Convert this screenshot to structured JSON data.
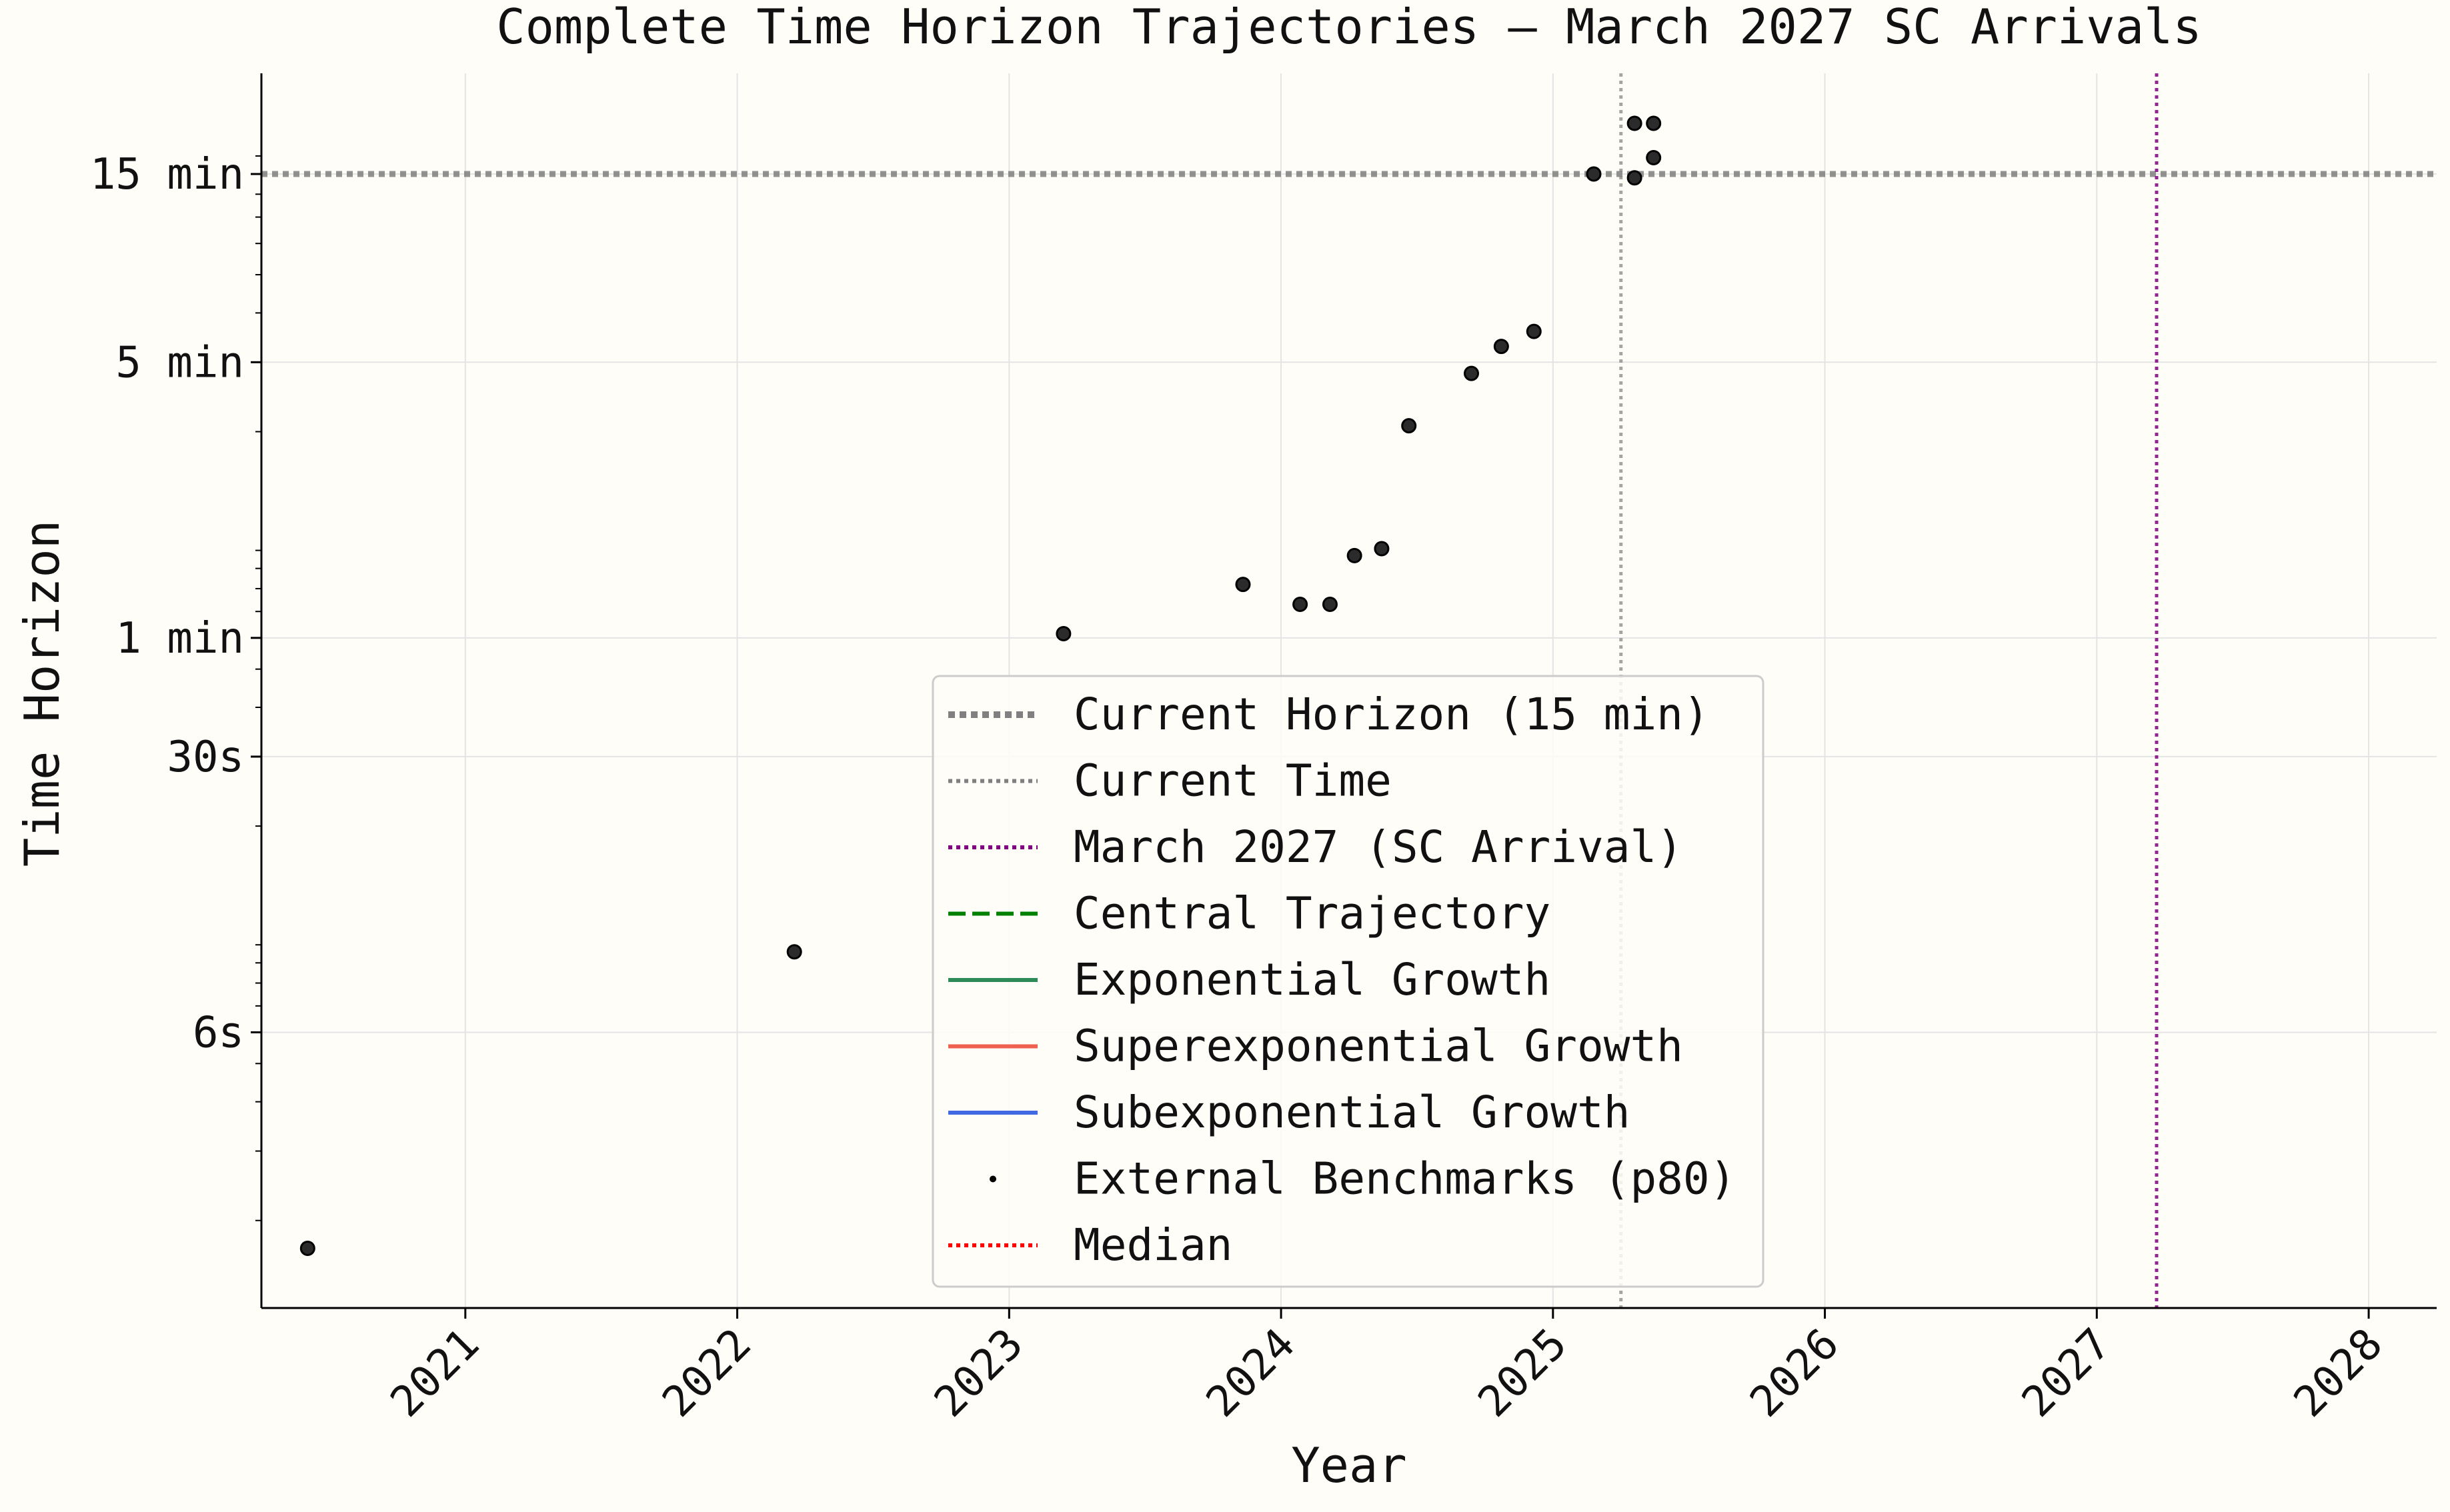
{
  "chart_data": {
    "type": "scatter",
    "title": "Complete Time Horizon Trajectories — March 2027 SC Arrivals",
    "xlabel": "Year",
    "ylabel": "Time Horizon",
    "x_scale": "linear",
    "y_scale": "log",
    "x_unit": "year",
    "y_unit": "seconds",
    "xlim": [
      2020.25,
      2028.25
    ],
    "ylim_seconds": [
      1.2,
      1620
    ],
    "x_ticks": [
      2021,
      2022,
      2023,
      2024,
      2025,
      2026,
      2027,
      2028
    ],
    "x_tick_labels": [
      "2021",
      "2022",
      "2023",
      "2024",
      "2025",
      "2026",
      "2027",
      "2028"
    ],
    "y_ticks_seconds": [
      6,
      30,
      60,
      300,
      900
    ],
    "y_tick_labels": [
      "6s",
      "30s",
      "1 min",
      "5 min",
      "15 min"
    ],
    "grid": true,
    "legend_position": "bottom-center",
    "reference_lines": {
      "current_horizon_seconds": 900,
      "current_time_year": 2025.25,
      "sc_arrival_year": 2027.22
    },
    "series": [
      {
        "name": "Current Horizon (15 min)",
        "style": "dotted-thick",
        "color": "#808080"
      },
      {
        "name": "Current Time",
        "style": "dotted",
        "color": "#808080"
      },
      {
        "name": "March 2027 (SC Arrival)",
        "style": "dotted",
        "color": "#800080"
      },
      {
        "name": "Central Trajectory",
        "style": "dashed",
        "color": "#008000"
      },
      {
        "name": "Exponential Growth",
        "style": "solid",
        "color": "#2e8b57"
      },
      {
        "name": "Superexponential Growth",
        "style": "solid",
        "color": "#f06050"
      },
      {
        "name": "Subexponential Growth",
        "style": "solid",
        "color": "#4169e1"
      },
      {
        "name": "External Benchmarks (p80)",
        "style": "marker",
        "color": "#000000"
      },
      {
        "name": "Median",
        "style": "dotted",
        "color": "#ff0000"
      }
    ],
    "points": [
      {
        "x": 2020.42,
        "y": 1.7
      },
      {
        "x": 2022.21,
        "y": 9.6
      },
      {
        "x": 2023.2,
        "y": 61.5
      },
      {
        "x": 2023.86,
        "y": 82
      },
      {
        "x": 2024.07,
        "y": 73
      },
      {
        "x": 2024.18,
        "y": 73
      },
      {
        "x": 2024.27,
        "y": 97
      },
      {
        "x": 2024.37,
        "y": 101
      },
      {
        "x": 2024.47,
        "y": 207
      },
      {
        "x": 2024.7,
        "y": 281
      },
      {
        "x": 2024.81,
        "y": 329
      },
      {
        "x": 2024.93,
        "y": 359
      },
      {
        "x": 2025.15,
        "y": 900
      },
      {
        "x": 2025.3,
        "y": 880
      },
      {
        "x": 2025.3,
        "y": 1210
      },
      {
        "x": 2025.37,
        "y": 1210
      },
      {
        "x": 2025.37,
        "y": 990
      }
    ],
    "point_color": "#2b2b2b"
  }
}
